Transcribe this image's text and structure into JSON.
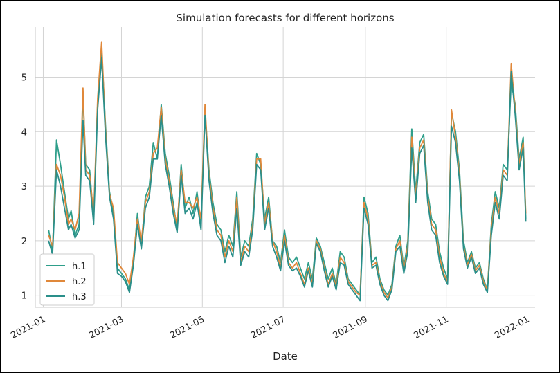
{
  "chart_data": {
    "type": "line",
    "title": "Simulation forecasts for different horizons",
    "xlabel": "Date",
    "ylabel": "",
    "x_ticks": [
      "2021-01",
      "2021-03",
      "2021-05",
      "2021-07",
      "2021-09",
      "2021-11",
      "2022-01"
    ],
    "y_ticks": [
      1,
      2,
      3,
      4,
      5
    ],
    "xlim": [
      "2020-12-26",
      "2022-01-07"
    ],
    "ylim": [
      0.78,
      5.92
    ],
    "grid": true,
    "legend_position": "lower-left",
    "x": [
      "2021-01-05",
      "2021-01-08",
      "2021-01-11",
      "2021-01-14",
      "2021-01-17",
      "2021-01-20",
      "2021-01-22",
      "2021-01-25",
      "2021-01-28",
      "2021-01-31",
      "2021-02-02",
      "2021-02-05",
      "2021-02-08",
      "2021-02-11",
      "2021-02-14",
      "2021-02-17",
      "2021-02-20",
      "2021-02-23",
      "2021-02-26",
      "2021-03-01",
      "2021-03-04",
      "2021-03-07",
      "2021-03-10",
      "2021-03-13",
      "2021-03-16",
      "2021-03-19",
      "2021-03-22",
      "2021-03-25",
      "2021-03-28",
      "2021-03-31",
      "2021-04-03",
      "2021-04-06",
      "2021-04-09",
      "2021-04-12",
      "2021-04-15",
      "2021-04-18",
      "2021-04-21",
      "2021-04-24",
      "2021-04-27",
      "2021-04-30",
      "2021-05-03",
      "2021-05-06",
      "2021-05-09",
      "2021-05-12",
      "2021-05-15",
      "2021-05-18",
      "2021-05-21",
      "2021-05-24",
      "2021-05-27",
      "2021-05-30",
      "2021-06-02",
      "2021-06-05",
      "2021-06-08",
      "2021-06-11",
      "2021-06-14",
      "2021-06-17",
      "2021-06-20",
      "2021-06-23",
      "2021-06-26",
      "2021-06-29",
      "2021-07-02",
      "2021-07-05",
      "2021-07-08",
      "2021-07-11",
      "2021-07-14",
      "2021-07-17",
      "2021-07-20",
      "2021-07-23",
      "2021-07-26",
      "2021-07-29",
      "2021-08-01",
      "2021-08-04",
      "2021-08-07",
      "2021-08-10",
      "2021-08-13",
      "2021-08-16",
      "2021-08-19",
      "2021-08-22",
      "2021-08-25",
      "2021-08-28",
      "2021-08-31",
      "2021-09-03",
      "2021-09-06",
      "2021-09-09",
      "2021-09-12",
      "2021-09-15",
      "2021-09-18",
      "2021-09-21",
      "2021-09-24",
      "2021-09-27",
      "2021-09-30",
      "2021-10-03",
      "2021-10-06",
      "2021-10-09",
      "2021-10-12",
      "2021-10-15",
      "2021-10-18",
      "2021-10-21",
      "2021-10-24",
      "2021-10-27",
      "2021-10-30",
      "2021-11-02",
      "2021-11-05",
      "2021-11-08",
      "2021-11-11",
      "2021-11-14",
      "2021-11-17",
      "2021-11-20",
      "2021-11-23",
      "2021-11-26",
      "2021-11-29",
      "2021-12-02",
      "2021-12-05",
      "2021-12-08",
      "2021-12-11",
      "2021-12-14",
      "2021-12-17",
      "2021-12-20",
      "2021-12-23",
      "2021-12-26",
      "2021-12-29",
      "2021-12-31"
    ],
    "series": [
      {
        "name": "h.1",
        "color": "#2e9e8a",
        "values": [
          2.2,
          1.8,
          3.85,
          3.4,
          2.9,
          2.4,
          2.55,
          2.1,
          2.3,
          4.7,
          3.4,
          3.3,
          2.4,
          4.5,
          5.5,
          4.1,
          2.9,
          2.5,
          1.5,
          1.4,
          1.3,
          1.1,
          1.6,
          2.5,
          1.9,
          2.8,
          3.0,
          3.8,
          3.5,
          4.5,
          3.6,
          3.2,
          2.7,
          2.2,
          3.4,
          2.6,
          2.8,
          2.5,
          2.9,
          2.3,
          4.4,
          3.3,
          2.7,
          2.3,
          2.2,
          1.8,
          2.1,
          1.9,
          2.9,
          1.7,
          2.0,
          1.9,
          2.4,
          3.6,
          3.4,
          2.4,
          2.8,
          2.0,
          1.9,
          1.6,
          2.2,
          1.7,
          1.6,
          1.7,
          1.5,
          1.3,
          1.6,
          1.3,
          2.05,
          1.9,
          1.6,
          1.3,
          1.5,
          1.2,
          1.8,
          1.7,
          1.3,
          1.2,
          1.1,
          1.0,
          2.8,
          2.5,
          1.6,
          1.7,
          1.3,
          1.1,
          1.0,
          1.2,
          1.9,
          2.1,
          1.5,
          2.0,
          4.05,
          2.9,
          3.8,
          3.95,
          2.9,
          2.4,
          2.3,
          1.8,
          1.5,
          1.3,
          4.35,
          4.0,
          3.3,
          2.0,
          1.6,
          1.8,
          1.5,
          1.6,
          1.3,
          1.1,
          2.3,
          2.9,
          2.6,
          3.4,
          3.3,
          4.9,
          4.5,
          3.5,
          3.9,
          2.4
        ]
      },
      {
        "name": "h.2",
        "color": "#e0883a",
        "values": [
          2.1,
          1.9,
          3.4,
          3.2,
          2.8,
          2.3,
          2.4,
          2.2,
          2.5,
          4.8,
          3.3,
          3.2,
          2.5,
          4.6,
          5.65,
          4.0,
          2.85,
          2.6,
          1.6,
          1.5,
          1.4,
          1.2,
          1.7,
          2.4,
          2.0,
          2.7,
          2.9,
          3.6,
          3.7,
          4.45,
          3.5,
          3.1,
          2.6,
          2.3,
          3.3,
          2.7,
          2.7,
          2.6,
          2.8,
          2.4,
          4.5,
          3.2,
          2.6,
          2.2,
          2.1,
          1.7,
          2.0,
          1.8,
          2.8,
          1.6,
          1.9,
          1.8,
          2.3,
          3.5,
          3.5,
          2.3,
          2.7,
          2.0,
          1.8,
          1.5,
          2.1,
          1.6,
          1.5,
          1.6,
          1.4,
          1.2,
          1.5,
          1.2,
          2.0,
          1.85,
          1.5,
          1.2,
          1.4,
          1.15,
          1.7,
          1.6,
          1.25,
          1.15,
          1.05,
          1.0,
          2.7,
          2.4,
          1.55,
          1.6,
          1.25,
          1.05,
          0.95,
          1.15,
          1.85,
          2.0,
          1.45,
          1.9,
          3.9,
          2.8,
          3.7,
          3.85,
          2.8,
          2.3,
          2.2,
          1.7,
          1.4,
          1.25,
          4.4,
          3.9,
          3.2,
          1.9,
          1.55,
          1.75,
          1.45,
          1.55,
          1.25,
          1.1,
          2.2,
          2.8,
          2.5,
          3.3,
          3.2,
          5.25,
          4.4,
          3.4,
          3.8,
          2.5
        ]
      },
      {
        "name": "h.3",
        "color": "#2a8f8a",
        "values": [
          2.0,
          1.75,
          3.3,
          3.0,
          2.6,
          2.2,
          2.3,
          2.05,
          2.2,
          4.2,
          3.2,
          3.1,
          2.3,
          4.4,
          5.35,
          3.9,
          2.8,
          2.4,
          1.4,
          1.35,
          1.25,
          1.05,
          1.55,
          2.3,
          1.85,
          2.6,
          2.8,
          3.5,
          3.5,
          4.3,
          3.4,
          3.0,
          2.5,
          2.15,
          3.2,
          2.5,
          2.6,
          2.4,
          2.7,
          2.2,
          4.3,
          3.1,
          2.5,
          2.1,
          2.0,
          1.6,
          1.9,
          1.7,
          2.6,
          1.55,
          1.8,
          1.7,
          2.2,
          3.4,
          3.3,
          2.2,
          2.6,
          1.9,
          1.7,
          1.45,
          2.0,
          1.55,
          1.45,
          1.5,
          1.35,
          1.15,
          1.45,
          1.15,
          1.95,
          1.8,
          1.45,
          1.15,
          1.35,
          1.1,
          1.6,
          1.55,
          1.2,
          1.1,
          1.0,
          0.9,
          2.6,
          2.3,
          1.5,
          1.55,
          1.2,
          1.0,
          0.9,
          1.1,
          1.8,
          1.9,
          1.4,
          1.8,
          3.7,
          2.7,
          3.6,
          3.75,
          2.7,
          2.2,
          2.1,
          1.6,
          1.35,
          1.2,
          4.1,
          3.8,
          3.1,
          1.85,
          1.5,
          1.7,
          1.4,
          1.5,
          1.2,
          1.05,
          2.1,
          2.7,
          2.4,
          3.2,
          3.1,
          5.1,
          4.3,
          3.3,
          3.7,
          2.35
        ]
      }
    ]
  }
}
